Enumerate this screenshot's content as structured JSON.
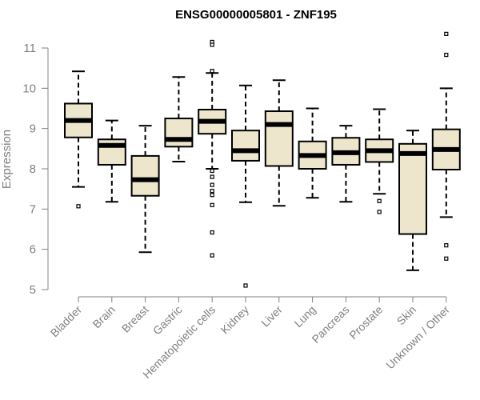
{
  "chart_data": {
    "type": "box",
    "title": "ENSG00000005801 - ZNF195",
    "ylabel": "Expression",
    "xlabel": "",
    "ylim": [
      5,
      11.3
    ],
    "yticks": [
      5,
      6,
      7,
      8,
      9,
      10,
      11
    ],
    "grid": false,
    "colors": {
      "box_fill": "#ede6cc",
      "stroke": "#000000",
      "axis": "#808080"
    },
    "categories": [
      "Bladder",
      "Brain",
      "Breast",
      "Gastric",
      "Hematopoietic cells",
      "Kidney",
      "Liver",
      "Lung",
      "Pancreas",
      "Prostate",
      "Skin",
      "Unknown / Other"
    ],
    "boxes": [
      {
        "min": 7.55,
        "q1": 8.78,
        "median": 9.2,
        "q3": 9.62,
        "max": 10.42,
        "outliers": [
          7.07
        ]
      },
      {
        "min": 7.18,
        "q1": 8.1,
        "median": 8.58,
        "q3": 8.73,
        "max": 9.2,
        "outliers": []
      },
      {
        "min": 5.93,
        "q1": 7.33,
        "median": 7.73,
        "q3": 8.32,
        "max": 9.07,
        "outliers": []
      },
      {
        "min": 8.18,
        "q1": 8.55,
        "median": 8.73,
        "q3": 9.25,
        "max": 10.28,
        "outliers": []
      },
      {
        "min": 8.0,
        "q1": 8.87,
        "median": 9.18,
        "q3": 9.47,
        "max": 10.38,
        "outliers": [
          11.15,
          11.08,
          10.43,
          7.95,
          7.8,
          7.6,
          7.45,
          7.35,
          7.1,
          6.42,
          5.85
        ]
      },
      {
        "min": 7.17,
        "q1": 8.2,
        "median": 8.45,
        "q3": 8.95,
        "max": 10.07,
        "outliers": [
          5.1
        ]
      },
      {
        "min": 7.08,
        "q1": 8.07,
        "median": 9.1,
        "q3": 9.43,
        "max": 10.2,
        "outliers": []
      },
      {
        "min": 7.28,
        "q1": 8.0,
        "median": 8.33,
        "q3": 8.68,
        "max": 9.5,
        "outliers": []
      },
      {
        "min": 7.18,
        "q1": 8.1,
        "median": 8.4,
        "q3": 8.77,
        "max": 9.07,
        "outliers": []
      },
      {
        "min": 7.38,
        "q1": 8.17,
        "median": 8.45,
        "q3": 8.73,
        "max": 9.48,
        "outliers": [
          7.2,
          6.93
        ]
      },
      {
        "min": 5.48,
        "q1": 6.38,
        "median": 8.38,
        "q3": 8.62,
        "max": 8.95,
        "outliers": []
      },
      {
        "min": 6.8,
        "q1": 7.98,
        "median": 8.48,
        "q3": 8.98,
        "max": 10.0,
        "outliers": [
          11.35,
          10.83,
          6.1,
          5.77
        ]
      }
    ]
  }
}
